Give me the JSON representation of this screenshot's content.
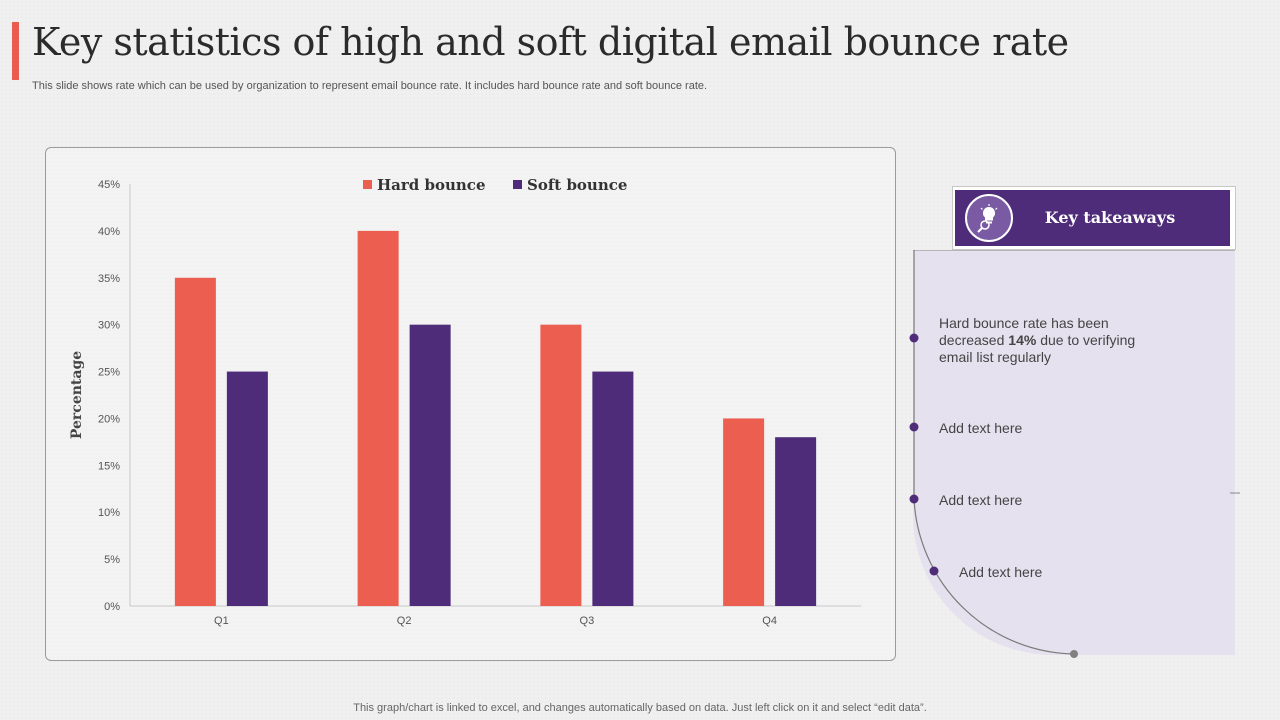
{
  "title": "Key statistics of high and soft digital email bounce rate",
  "subtitle": "This slide shows rate which can be used by organization to represent email bounce rate. It includes hard bounce rate and soft bounce rate.",
  "footer": "This graph/chart is linked to excel, and changes automatically based on data. Just left click on it and select “edit data”.",
  "colors": {
    "accent": "#e85d4f",
    "hard": "#eb5e50",
    "soft": "#4e2c7a"
  },
  "takeaways": {
    "title": "Key takeaways",
    "icon": "lightbulb-magnifier-icon",
    "items": [
      {
        "pre": "Hard bounce rate has been decreased ",
        "bold": "14%",
        "post": " due to verifying email list regularly"
      },
      {
        "text": "Add text here"
      },
      {
        "text": "Add text here"
      },
      {
        "text": "Add text here"
      }
    ]
  },
  "chart_data": {
    "type": "bar",
    "categories": [
      "Q1",
      "Q2",
      "Q3",
      "Q4"
    ],
    "series": [
      {
        "name": "Hard bounce",
        "values": [
          35,
          40,
          30,
          20
        ]
      },
      {
        "name": "Soft bounce",
        "values": [
          25,
          30,
          25,
          18
        ]
      }
    ],
    "ylabel": "Percentage",
    "ylim": [
      0,
      45
    ],
    "yticks": [
      0,
      5,
      10,
      15,
      20,
      25,
      30,
      35,
      40,
      45
    ],
    "ytick_suffix": "%",
    "legend": "top-center",
    "grid": false
  }
}
